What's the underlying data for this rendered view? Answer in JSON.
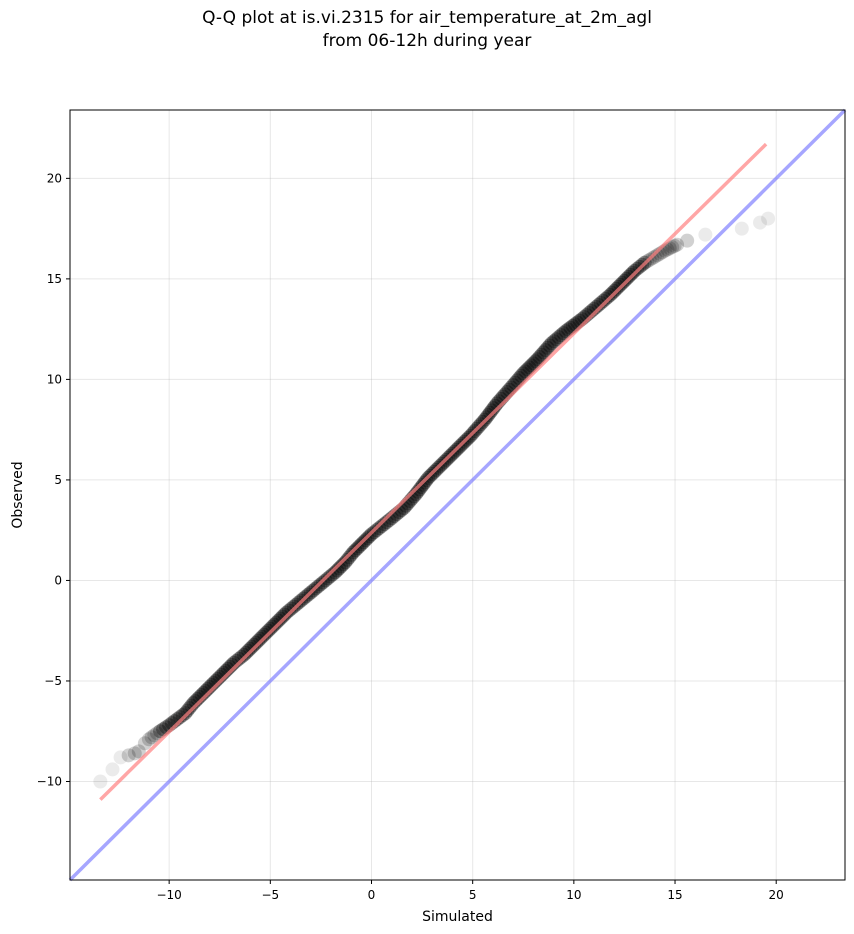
{
  "chart_data": {
    "type": "scatter",
    "title_line1": "Q-Q plot at is.vi.2315 for air_temperature_at_2m_agl",
    "title_line2": "from 06-12h during year",
    "xlabel": "Simulated",
    "ylabel": "Observed",
    "xlim": [
      -14.9,
      23.4
    ],
    "ylim": [
      -14.9,
      23.4
    ],
    "xticks": [
      -10,
      -5,
      0,
      5,
      10,
      15,
      20
    ],
    "yticks": [
      -10,
      -5,
      0,
      5,
      10,
      15,
      20
    ],
    "grid": true,
    "series": [
      {
        "kind": "quantiles",
        "color": "#000000",
        "points": [
          [
            -13.4,
            -10.0
          ],
          [
            -12.8,
            -9.4
          ],
          [
            -12.4,
            -8.8
          ],
          [
            -12.0,
            -8.7
          ],
          [
            -11.7,
            -8.6
          ],
          [
            -11.5,
            -8.5
          ],
          [
            -11.2,
            -8.1
          ],
          [
            -11.0,
            -7.9
          ],
          [
            -10.6,
            -7.6
          ],
          [
            -10.3,
            -7.4
          ],
          [
            -10.0,
            -7.2
          ],
          [
            -9.6,
            -6.9
          ],
          [
            -9.2,
            -6.6
          ],
          [
            -8.8,
            -6.1
          ],
          [
            -8.3,
            -5.6
          ],
          [
            -7.8,
            -5.1
          ],
          [
            -7.3,
            -4.6
          ],
          [
            -6.8,
            -4.1
          ],
          [
            -6.3,
            -3.7
          ],
          [
            -5.7,
            -3.1
          ],
          [
            -5.2,
            -2.6
          ],
          [
            -4.7,
            -2.1
          ],
          [
            -4.2,
            -1.6
          ],
          [
            -3.6,
            -1.1
          ],
          [
            -3.0,
            -0.6
          ],
          [
            -2.4,
            -0.1
          ],
          [
            -1.8,
            0.4
          ],
          [
            -1.3,
            0.9
          ],
          [
            -0.9,
            1.4
          ],
          [
            -0.5,
            1.8
          ],
          [
            0.0,
            2.3
          ],
          [
            0.5,
            2.7
          ],
          [
            1.0,
            3.1
          ],
          [
            1.6,
            3.6
          ],
          [
            2.2,
            4.3
          ],
          [
            2.8,
            5.1
          ],
          [
            3.5,
            5.8
          ],
          [
            4.2,
            6.5
          ],
          [
            4.9,
            7.2
          ],
          [
            5.6,
            8.0
          ],
          [
            6.2,
            8.8
          ],
          [
            6.9,
            9.6
          ],
          [
            7.5,
            10.3
          ],
          [
            8.2,
            11.0
          ],
          [
            8.9,
            11.8
          ],
          [
            9.6,
            12.4
          ],
          [
            10.4,
            13.0
          ],
          [
            11.1,
            13.6
          ],
          [
            11.8,
            14.2
          ],
          [
            12.4,
            14.8
          ],
          [
            13.0,
            15.4
          ],
          [
            13.5,
            15.8
          ],
          [
            14.0,
            16.1
          ],
          [
            14.5,
            16.4
          ],
          [
            15.1,
            16.7
          ],
          [
            15.6,
            16.9
          ],
          [
            16.5,
            17.2
          ],
          [
            18.3,
            17.5
          ],
          [
            19.2,
            17.8
          ],
          [
            19.6,
            18.0
          ]
        ]
      },
      {
        "kind": "fit-line",
        "color": "#ff8080",
        "x": [
          -13.4,
          19.5
        ],
        "y": [
          -10.9,
          21.7
        ]
      },
      {
        "kind": "one-to-one-line",
        "color": "#8080ff",
        "x": [
          -14.9,
          23.4
        ],
        "y": [
          -14.9,
          23.4
        ]
      }
    ]
  }
}
